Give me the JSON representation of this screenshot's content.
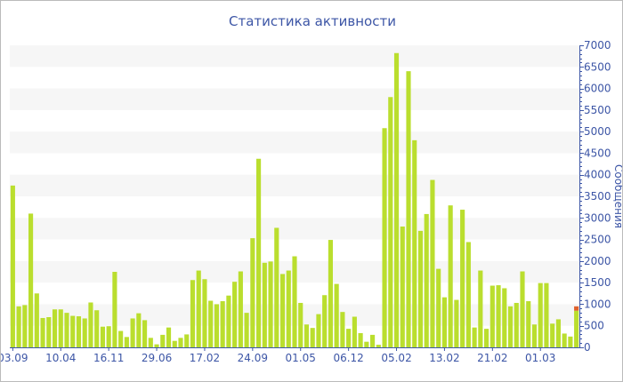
{
  "chart_data": {
    "type": "bar",
    "title": "Статистика активности",
    "ylabel": "Сообщения",
    "xlabel": "",
    "ylim": [
      0,
      7000
    ],
    "yticks": [
      0,
      500,
      1000,
      1500,
      2000,
      2500,
      3000,
      3500,
      4000,
      4500,
      5000,
      5500,
      6000,
      6500,
      7000
    ],
    "x_tick_labels": [
      "03.09",
      "10.04",
      "16.11",
      "29.06",
      "17.02",
      "24.09",
      "01.05",
      "06.12",
      "05.02",
      "13.02",
      "21.02",
      "01.03"
    ],
    "x_tick_every": 8,
    "grid": "alternating horizontal bands",
    "series": [
      {
        "color": "#bade2e",
        "values": [
          3750,
          950,
          980,
          3100,
          1250,
          680,
          700,
          880,
          880,
          800,
          730,
          720,
          670,
          1040,
          860,
          480,
          490,
          1750,
          380,
          240,
          670,
          790,
          630,
          220,
          70,
          290,
          460,
          150,
          220,
          300,
          1560,
          1780,
          1580,
          1080,
          1000,
          1070,
          1200,
          1520,
          1760,
          800,
          2530,
          4370,
          1960,
          1990,
          2770,
          1700,
          1780,
          2110,
          1030,
          530,
          450,
          770,
          1210,
          2490,
          1470,
          820,
          430,
          710,
          330,
          130,
          290,
          60,
          5080,
          5800,
          6820,
          2800,
          6400,
          4800,
          2700,
          3090,
          3880,
          1820,
          1160,
          3290,
          1100,
          3190,
          2440,
          460,
          1780,
          430,
          1430,
          1440,
          1370,
          950,
          1030,
          1760,
          1070,
          530,
          1490,
          1490,
          550,
          650,
          320,
          250,
          850
        ]
      },
      {
        "color": "#e0622e",
        "values": [
          0,
          0,
          0,
          0,
          0,
          0,
          0,
          0,
          0,
          0,
          0,
          0,
          0,
          0,
          0,
          0,
          0,
          0,
          0,
          0,
          0,
          0,
          0,
          0,
          0,
          0,
          0,
          0,
          0,
          0,
          0,
          0,
          0,
          0,
          0,
          0,
          0,
          0,
          0,
          0,
          0,
          0,
          0,
          0,
          0,
          0,
          0,
          0,
          0,
          0,
          0,
          0,
          0,
          0,
          0,
          0,
          0,
          0,
          0,
          0,
          0,
          0,
          0,
          0,
          0,
          0,
          0,
          0,
          0,
          0,
          0,
          0,
          0,
          0,
          0,
          0,
          0,
          0,
          0,
          0,
          0,
          0,
          0,
          0,
          0,
          0,
          0,
          0,
          0,
          0,
          0,
          0,
          0,
          0,
          100
        ]
      }
    ],
    "stacked": true
  },
  "colors": {
    "axis": "#3d56a6",
    "band": "#f6f6f6"
  }
}
